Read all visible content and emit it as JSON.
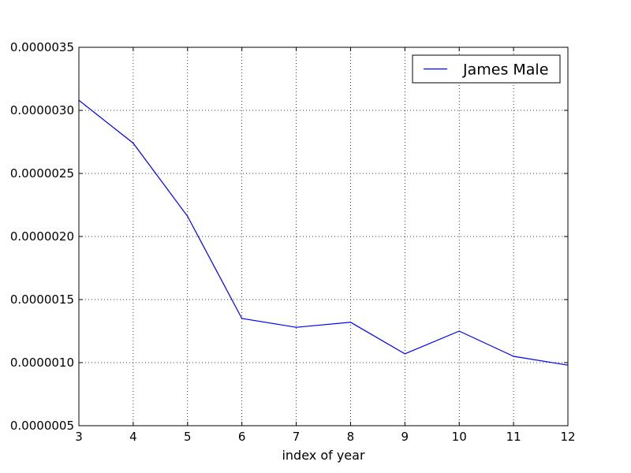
{
  "chart_data": {
    "type": "line",
    "title": "",
    "xlabel": "index of year",
    "ylabel": "",
    "xlim": [
      3,
      12
    ],
    "ylim": [
      5e-07,
      3.5e-06
    ],
    "x_ticks": [
      3,
      4,
      5,
      6,
      7,
      8,
      9,
      10,
      11,
      12
    ],
    "y_ticks": [
      5e-07,
      1e-06,
      1.5e-06,
      2e-06,
      2.5e-06,
      3e-06,
      3.5e-06
    ],
    "x_tick_labels": [
      "3",
      "4",
      "5",
      "6",
      "7",
      "8",
      "9",
      "10",
      "11",
      "12"
    ],
    "y_tick_labels": [
      "0.0000005",
      "0.0000010",
      "0.0000015",
      "0.0000020",
      "0.0000025",
      "0.0000030",
      "0.0000035"
    ],
    "grid": true,
    "legend_position": "top-right",
    "x": [
      3,
      4,
      5,
      6,
      7,
      8,
      9,
      10,
      11,
      12
    ],
    "series": [
      {
        "name": "James Male",
        "color": "#0000ff",
        "values": [
          3.08e-06,
          2.74e-06,
          2.16e-06,
          1.35e-06,
          1.28e-06,
          1.32e-06,
          1.07e-06,
          1.25e-06,
          1.05e-06,
          9.8e-07
        ]
      }
    ]
  }
}
